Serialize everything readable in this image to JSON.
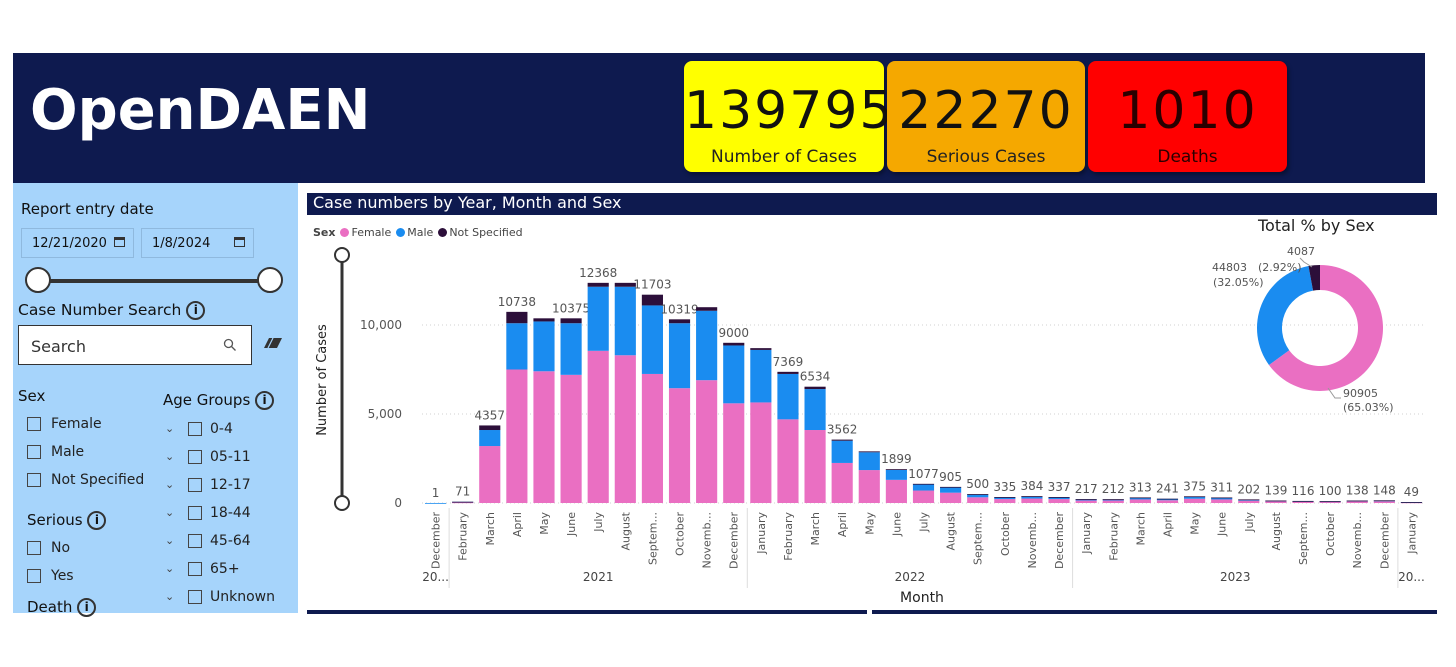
{
  "brand": "OpenDAEN",
  "kpis": {
    "cases": {
      "value": "139795",
      "label": "Number of Cases",
      "color": "#ffff00"
    },
    "serious": {
      "value": "22270",
      "label": "Serious Cases",
      "color": "#f5a800"
    },
    "deaths": {
      "value": "1010",
      "label": "Deaths",
      "color": "#ff0000"
    }
  },
  "filters": {
    "report_date_label": "Report entry date",
    "date_start": "12/21/2020",
    "date_end": "1/8/2024",
    "case_search_label": "Case Number Search",
    "search_placeholder": "Search",
    "sex_label": "Sex",
    "sex_options": [
      "Female",
      "Male",
      "Not Specified"
    ],
    "serious_label": "Serious",
    "serious_options": [
      "No",
      "Yes"
    ],
    "death_label": "Death",
    "age_label": "Age Groups",
    "age_options": [
      "0-4",
      "05-11",
      "12-17",
      "18-44",
      "45-64",
      "65+",
      "Unknown"
    ],
    "info_glyph": "i"
  },
  "chart_title": "Case numbers by Year, Month and Sex",
  "legend": {
    "title": "Sex",
    "items": [
      {
        "name": "Female",
        "color": "#ea6fc2"
      },
      {
        "name": "Male",
        "color": "#1a8cf0"
      },
      {
        "name": "Not Specified",
        "color": "#2c0f3a"
      }
    ]
  },
  "chart_data": [
    {
      "type": "bar",
      "stacked": true,
      "xlabel": "Month",
      "ylabel": "Number of Cases",
      "ylim": [
        0,
        14000
      ],
      "yticks": [
        0,
        5000,
        10000
      ],
      "ytick_labels": [
        "0",
        "5,000",
        "10,000"
      ],
      "grid": true,
      "legend_position": "top-left",
      "categories": [
        "December",
        "February",
        "March",
        "April",
        "May",
        "June",
        "July",
        "August",
        "Septem...",
        "October",
        "Novemb...",
        "December",
        "January",
        "February",
        "March",
        "April",
        "May",
        "June",
        "July",
        "August",
        "Septem...",
        "October",
        "Novemb...",
        "December",
        "January",
        "February",
        "March",
        "April",
        "May",
        "June",
        "July",
        "August",
        "Septem...",
        "October",
        "Novemb...",
        "December",
        "January"
      ],
      "year_groups": [
        {
          "label": "20...",
          "span": 1
        },
        {
          "label": "2021",
          "span": 11
        },
        {
          "label": "2022",
          "span": 12
        },
        {
          "label": "2023",
          "span": 12
        },
        {
          "label": "20...",
          "span": 1
        }
      ],
      "totals": [
        1,
        71,
        4357,
        10738,
        10375,
        10375,
        12368,
        12368,
        11703,
        10319,
        11000,
        9000,
        8700,
        7369,
        6534,
        3562,
        2900,
        1899,
        1077,
        905,
        500,
        335,
        384,
        337,
        217,
        212,
        313,
        241,
        375,
        311,
        202,
        139,
        116,
        100,
        138,
        148,
        49
      ],
      "total_labels": [
        "1",
        "71",
        "4357",
        "10738",
        "",
        "10375",
        "12368",
        "",
        "11703",
        "10319",
        "",
        "9000",
        "",
        "7369",
        "6534",
        "3562",
        "",
        "1899",
        "1077",
        "905",
        "500",
        "335",
        "384",
        "337",
        "217",
        "212",
        "313",
        "241",
        "375",
        "311",
        "202",
        "139",
        "116",
        "100",
        "138",
        "148",
        "49"
      ],
      "series": [
        {
          "name": "Female",
          "values": [
            0,
            35,
            3200,
            7500,
            7400,
            7200,
            8550,
            8300,
            7250,
            6450,
            6900,
            5600,
            5650,
            4700,
            4100,
            2250,
            1850,
            1300,
            700,
            580,
            320,
            220,
            250,
            220,
            140,
            140,
            200,
            155,
            240,
            200,
            130,
            90,
            75,
            65,
            90,
            95,
            32
          ]
        },
        {
          "name": "Male",
          "values": [
            1,
            32,
            900,
            2600,
            2800,
            2900,
            3600,
            3850,
            3850,
            3650,
            3900,
            3250,
            2950,
            2550,
            2300,
            1250,
            1000,
            560,
            350,
            300,
            160,
            100,
            120,
            105,
            70,
            65,
            100,
            80,
            125,
            100,
            65,
            45,
            38,
            32,
            45,
            50,
            16
          ]
        },
        {
          "name": "Not Specified",
          "values": [
            0,
            4,
            257,
            638,
            175,
            275,
            218,
            218,
            603,
            219,
            200,
            150,
            100,
            119,
            134,
            62,
            50,
            39,
            27,
            25,
            20,
            15,
            14,
            12,
            7,
            7,
            13,
            6,
            10,
            11,
            7,
            4,
            3,
            3,
            3,
            3,
            1
          ]
        }
      ]
    },
    {
      "type": "pie",
      "donut": true,
      "title": "Total % by Sex",
      "labels": [
        "Female",
        "Male",
        "Not Specified"
      ],
      "values": [
        90905,
        44803,
        4087
      ],
      "percent_labels": [
        "(65.03%)",
        "(32.05%)",
        "(2.92%)"
      ],
      "colors": [
        "#ea6fc2",
        "#1a8cf0",
        "#2c0f3a"
      ]
    }
  ]
}
